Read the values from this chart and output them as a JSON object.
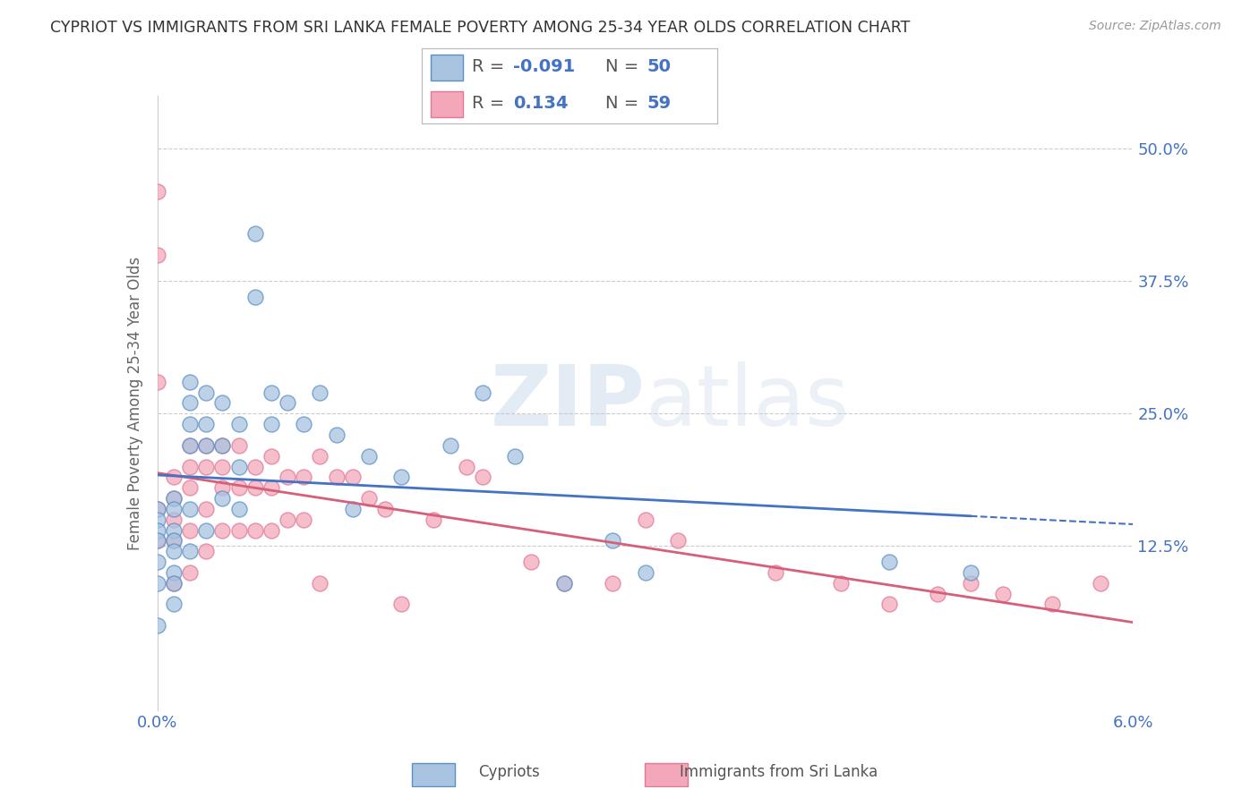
{
  "title": "CYPRIOT VS IMMIGRANTS FROM SRI LANKA FEMALE POVERTY AMONG 25-34 YEAR OLDS CORRELATION CHART",
  "source": "Source: ZipAtlas.com",
  "ylabel": "Female Poverty Among 25-34 Year Olds",
  "x_min": 0.0,
  "x_max": 0.06,
  "y_min": -0.03,
  "y_max": 0.55,
  "x_ticks": [
    0.0,
    0.01,
    0.02,
    0.03,
    0.04,
    0.05,
    0.06
  ],
  "y_ticks": [
    0.0,
    0.125,
    0.25,
    0.375,
    0.5
  ],
  "cypriot_color": "#a8c4e0",
  "sri_lanka_color": "#f4a7b9",
  "cypriot_edge_color": "#5b8fc7",
  "sri_lanka_edge_color": "#e07898",
  "cypriot_line_color": "#4472c4",
  "sri_lanka_line_color": "#d4607a",
  "cypriot_R": -0.091,
  "cypriot_N": 50,
  "sri_lanka_R": 0.134,
  "sri_lanka_N": 59,
  "legend_label_1": "Cypriots",
  "legend_label_2": "Immigrants from Sri Lanka",
  "watermark_zip": "ZIP",
  "watermark_atlas": "atlas",
  "background_color": "#ffffff",
  "grid_color": "#cccccc",
  "cypriot_x": [
    0.0,
    0.0,
    0.0,
    0.0,
    0.0,
    0.0,
    0.0,
    0.001,
    0.001,
    0.001,
    0.001,
    0.001,
    0.001,
    0.001,
    0.001,
    0.002,
    0.002,
    0.002,
    0.002,
    0.002,
    0.002,
    0.003,
    0.003,
    0.003,
    0.003,
    0.004,
    0.004,
    0.004,
    0.005,
    0.005,
    0.005,
    0.006,
    0.006,
    0.007,
    0.007,
    0.008,
    0.009,
    0.01,
    0.011,
    0.012,
    0.013,
    0.015,
    0.018,
    0.02,
    0.022,
    0.025,
    0.028,
    0.03,
    0.045,
    0.05
  ],
  "cypriot_y": [
    0.16,
    0.15,
    0.14,
    0.13,
    0.11,
    0.09,
    0.05,
    0.17,
    0.16,
    0.14,
    0.13,
    0.12,
    0.1,
    0.09,
    0.07,
    0.28,
    0.26,
    0.24,
    0.22,
    0.16,
    0.12,
    0.27,
    0.24,
    0.22,
    0.14,
    0.26,
    0.22,
    0.17,
    0.24,
    0.2,
    0.16,
    0.42,
    0.36,
    0.27,
    0.24,
    0.26,
    0.24,
    0.27,
    0.23,
    0.16,
    0.21,
    0.19,
    0.22,
    0.27,
    0.21,
    0.09,
    0.13,
    0.1,
    0.11,
    0.1
  ],
  "sri_lanka_x": [
    0.0,
    0.0,
    0.0,
    0.0,
    0.0,
    0.001,
    0.001,
    0.001,
    0.001,
    0.001,
    0.002,
    0.002,
    0.002,
    0.002,
    0.002,
    0.003,
    0.003,
    0.003,
    0.003,
    0.004,
    0.004,
    0.004,
    0.004,
    0.005,
    0.005,
    0.005,
    0.006,
    0.006,
    0.006,
    0.007,
    0.007,
    0.007,
    0.008,
    0.008,
    0.009,
    0.009,
    0.01,
    0.01,
    0.011,
    0.012,
    0.013,
    0.014,
    0.015,
    0.017,
    0.019,
    0.02,
    0.023,
    0.025,
    0.028,
    0.03,
    0.032,
    0.038,
    0.042,
    0.045,
    0.048,
    0.05,
    0.052,
    0.055,
    0.058
  ],
  "sri_lanka_y": [
    0.46,
    0.4,
    0.28,
    0.16,
    0.13,
    0.19,
    0.17,
    0.15,
    0.13,
    0.09,
    0.22,
    0.2,
    0.18,
    0.14,
    0.1,
    0.22,
    0.2,
    0.16,
    0.12,
    0.22,
    0.2,
    0.18,
    0.14,
    0.22,
    0.18,
    0.14,
    0.2,
    0.18,
    0.14,
    0.21,
    0.18,
    0.14,
    0.19,
    0.15,
    0.19,
    0.15,
    0.21,
    0.09,
    0.19,
    0.19,
    0.17,
    0.16,
    0.07,
    0.15,
    0.2,
    0.19,
    0.11,
    0.09,
    0.09,
    0.15,
    0.13,
    0.1,
    0.09,
    0.07,
    0.08,
    0.09,
    0.08,
    0.07,
    0.09
  ]
}
